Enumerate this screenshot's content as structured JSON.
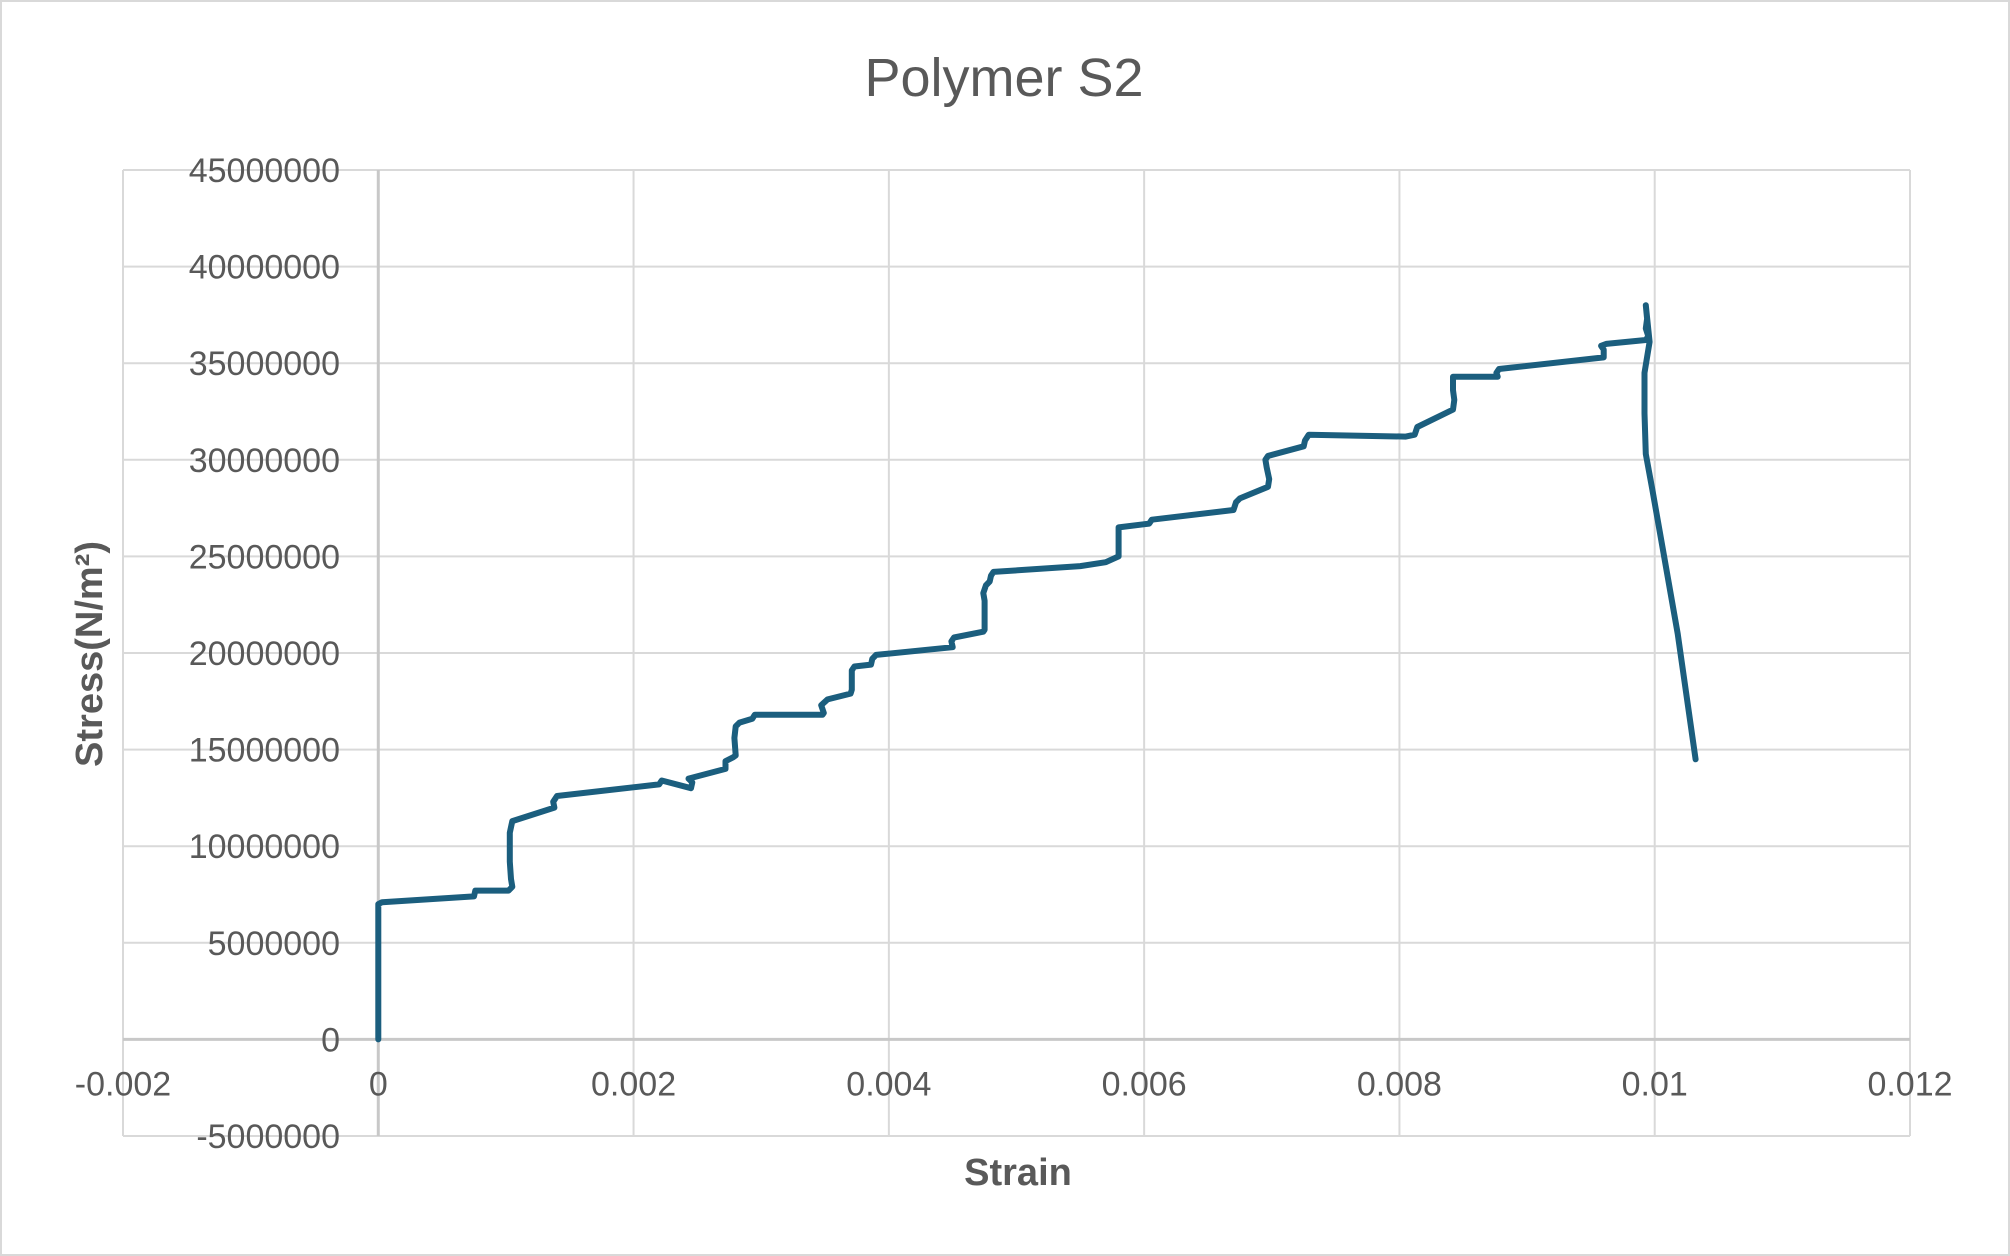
{
  "chart_data": {
    "type": "scatter",
    "title": "Polymer S2",
    "xlabel": "Strain",
    "ylabel": "Stress(N/m²)",
    "xlim": [
      -0.002,
      0.012
    ],
    "ylim": [
      -5000000,
      45000000
    ],
    "xticks": [
      -0.002,
      0,
      0.002,
      0.004,
      0.006,
      0.008,
      0.01,
      0.012
    ],
    "xtick_labels": [
      "-0.002",
      "0",
      "0.002",
      "0.004",
      "0.006",
      "0.008",
      "0.01",
      "0.012"
    ],
    "yticks": [
      -5000000,
      0,
      5000000,
      10000000,
      15000000,
      20000000,
      25000000,
      30000000,
      35000000,
      40000000,
      45000000
    ],
    "ytick_labels": [
      "-5000000",
      "0",
      "5000000",
      "10000000",
      "15000000",
      "20000000",
      "25000000",
      "30000000",
      "35000000",
      "40000000",
      "45000000"
    ],
    "grid": true,
    "legend": "none",
    "series": [
      {
        "color": "#1b5e7e",
        "line": true,
        "markers": false,
        "x": [
          0,
          0,
          3e-05,
          0.00075,
          0.00076,
          0.00102,
          0.00105,
          0.00104,
          0.00103,
          0.00103,
          0.00105,
          0.00138,
          0.00137,
          0.0014,
          0.0022,
          0.00222,
          0.00245,
          0.00246,
          0.00243,
          0.00272,
          0.00272,
          0.00278,
          0.0028,
          0.00279,
          0.0028,
          0.00283,
          0.00293,
          0.00295,
          0.00348,
          0.00349,
          0.00347,
          0.00352,
          0.0037,
          0.00371,
          0.00371,
          0.00373,
          0.00386,
          0.00387,
          0.0039,
          0.0045,
          0.00449,
          0.00451,
          0.00474,
          0.00475,
          0.00475,
          0.00475,
          0.00474,
          0.00476,
          0.00479,
          0.0048,
          0.00482,
          0.0055,
          0.0057,
          0.0058,
          0.0058,
          0.0058,
          0.0058,
          0.00604,
          0.00606,
          0.0067,
          0.00672,
          0.00675,
          0.00697,
          0.00698,
          0.00696,
          0.00695,
          0.00697,
          0.00725,
          0.00726,
          0.00729,
          0.00805,
          0.00812,
          0.00814,
          0.00842,
          0.00843,
          0.00842,
          0.00842,
          0.00844,
          0.00877,
          0.00876,
          0.00878,
          0.0096,
          0.0096,
          0.00958,
          0.00962,
          0.00993,
          0.00995,
          0.00993,
          0.00994,
          0.00993,
          0.00996,
          0.00992,
          0.00992,
          0.00993,
          0.00998,
          0.01006,
          0.01018,
          0.01032
        ],
        "y": [
          0,
          7000000,
          7100000,
          7400000,
          7700000,
          7700000,
          7900000,
          8300000,
          9200000,
          10700000,
          11300000,
          12000000,
          12300000,
          12600000,
          13200000,
          13400000,
          13000000,
          13300000,
          13500000,
          14000000,
          14400000,
          14600000,
          14700000,
          15600000,
          16200000,
          16400000,
          16600000,
          16800000,
          16800000,
          16900000,
          17300000,
          17600000,
          17900000,
          18100000,
          19100000,
          19300000,
          19400000,
          19700000,
          19900000,
          20300000,
          20600000,
          20800000,
          21100000,
          21200000,
          21700000,
          22700000,
          23100000,
          23500000,
          23700000,
          24000000,
          24200000,
          24500000,
          24700000,
          25000000,
          25600000,
          26100000,
          26500000,
          26700000,
          26900000,
          27400000,
          27800000,
          28000000,
          28600000,
          29000000,
          29600000,
          30000000,
          30200000,
          30700000,
          31000000,
          31300000,
          31200000,
          31300000,
          31700000,
          32600000,
          33100000,
          33600000,
          34300000,
          34300000,
          34300000,
          34500000,
          34700000,
          35300000,
          35700000,
          35900000,
          36000000,
          36200000,
          36400000,
          36800000,
          37300000,
          38000000,
          36100000,
          34500000,
          32400000,
          30300000,
          28500000,
          25500000,
          21000000,
          14500000
        ]
      }
    ]
  }
}
